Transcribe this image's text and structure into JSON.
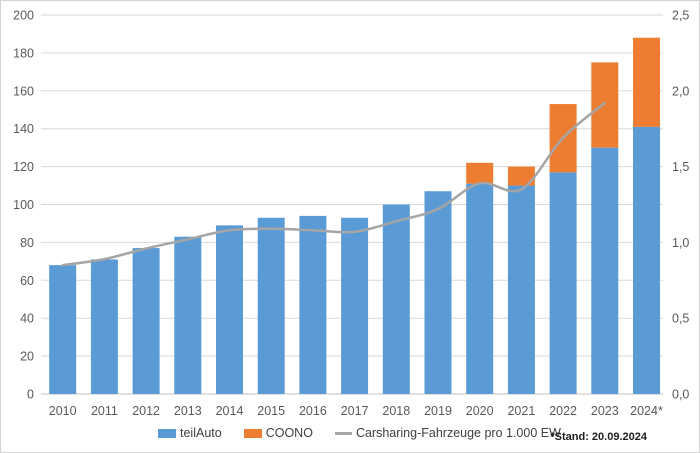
{
  "chart_data": {
    "type": "bar",
    "subtype": "stacked-bars-with-line-combo",
    "categories": [
      "2010",
      "2011",
      "2012",
      "2013",
      "2014",
      "2015",
      "2016",
      "2017",
      "2018",
      "2019",
      "2020",
      "2021",
      "2022",
      "2023",
      "2024*"
    ],
    "series": [
      {
        "name": "teilAuto",
        "type": "bar",
        "stack": true,
        "axis": "left",
        "color": "#5B9BD5",
        "values": [
          68,
          71,
          77,
          83,
          89,
          93,
          94,
          93,
          100,
          107,
          111,
          110,
          117,
          130,
          141
        ]
      },
      {
        "name": "COONO",
        "type": "bar",
        "stack": true,
        "axis": "left",
        "color": "#ED7D31",
        "values": [
          0,
          0,
          0,
          0,
          0,
          0,
          0,
          0,
          0,
          0,
          11,
          10,
          36,
          45,
          47
        ]
      },
      {
        "name": "Carsharing-Fahrzeuge pro 1.000 EW",
        "type": "line",
        "smooth": true,
        "axis": "right",
        "color": "#A5A5A5",
        "values": [
          0.85,
          0.89,
          0.96,
          1.02,
          1.08,
          1.09,
          1.08,
          1.07,
          1.14,
          1.22,
          1.39,
          1.35,
          1.69,
          1.92,
          null
        ]
      }
    ],
    "stacked_totals": [
      68,
      71,
      77,
      83,
      89,
      93,
      94,
      93,
      100,
      107,
      122,
      120,
      153,
      175,
      188
    ],
    "left_axis": {
      "min": 0,
      "max": 200,
      "step": 20,
      "tick_labels": [
        "0",
        "20",
        "40",
        "60",
        "80",
        "100",
        "120",
        "140",
        "160",
        "180",
        "200"
      ]
    },
    "right_axis": {
      "min": 0,
      "max": 2.5,
      "step": 0.5,
      "tick_labels": [
        "0,0",
        "0,5",
        "1,0",
        "1,5",
        "2,0",
        "2,5"
      ]
    },
    "grid": "horizontal",
    "legend_position": "bottom"
  },
  "colors": {
    "bar_blue": "#5B9BD5",
    "bar_orange": "#ED7D31",
    "line_gray": "#A5A5A5",
    "gridline": "#D9D9D9",
    "axis_text": "#595959"
  },
  "footnote": "*Stand: 20.09.2024"
}
